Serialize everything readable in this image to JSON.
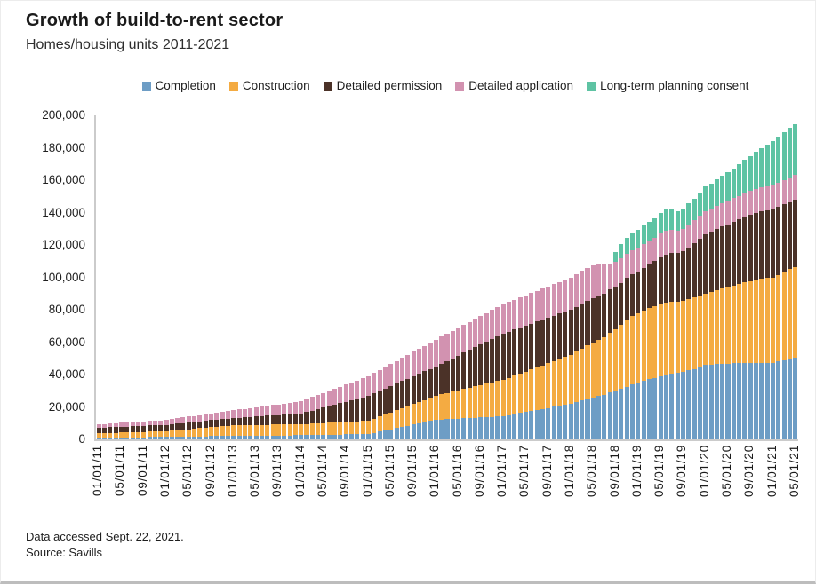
{
  "header": {
    "title": "Growth of build-to-rent sector",
    "subtitle": "Homes/housing units 2011-2021"
  },
  "footer": {
    "line1": "Data accessed Sept. 22, 2021.",
    "line2": "Source: Savills"
  },
  "chart_data": {
    "type": "bar",
    "stacked": true,
    "title": "Growth of build-to-rent sector",
    "subtitle": "Homes/housing units 2011-2021",
    "ylabel": "Homes/housing units",
    "ylim": [
      0,
      200000
    ],
    "grid": false,
    "legend_position": "top",
    "x_interval": "monthly",
    "x_first": "01/01/11",
    "x_last": "05/01/21",
    "n_points": 125,
    "x_tick_every": 4,
    "x_tick_labels": [
      "01/01/11",
      "05/01/11",
      "09/01/11",
      "01/01/12",
      "05/01/12",
      "09/01/12",
      "01/01/13",
      "05/01/13",
      "09/01/13",
      "01/01/14",
      "05/01/14",
      "09/01/14",
      "01/01/15",
      "05/01/15",
      "09/01/15",
      "01/01/16",
      "05/01/16",
      "09/01/16",
      "01/01/17",
      "05/01/17",
      "09/01/17",
      "01/01/18",
      "05/01/18",
      "09/01/18",
      "01/01/19",
      "05/01/19",
      "09/01/19",
      "01/01/20",
      "05/01/20",
      "09/01/20",
      "01/01/21",
      "05/01/21"
    ],
    "y_tick_labels": [
      "0",
      "20,000",
      "40,000",
      "60,000",
      "80,000",
      "100,000",
      "120,000",
      "140,000",
      "160,000",
      "180,000",
      "200,000"
    ],
    "series": [
      {
        "name": "Completion",
        "color": "#6d9dc5",
        "values": [
          1000,
          1040,
          1080,
          1130,
          1170,
          1210,
          1250,
          1290,
          1330,
          1380,
          1420,
          1460,
          1500,
          1560,
          1620,
          1680,
          1730,
          1790,
          1850,
          1910,
          1970,
          2030,
          2080,
          2140,
          2200,
          2230,
          2250,
          2280,
          2300,
          2330,
          2350,
          2380,
          2400,
          2430,
          2450,
          2480,
          2500,
          2570,
          2630,
          2700,
          2770,
          2830,
          2900,
          2970,
          3030,
          3100,
          3170,
          3230,
          3300,
          4030,
          4770,
          5500,
          6230,
          6970,
          7700,
          8430,
          9170,
          9900,
          10630,
          11370,
          12100,
          12280,
          12470,
          12650,
          12830,
          13020,
          13200,
          13380,
          13570,
          13750,
          13930,
          14120,
          14300,
          14940,
          15580,
          16230,
          16870,
          17510,
          18150,
          18790,
          19430,
          20080,
          20720,
          21360,
          22000,
          23000,
          24000,
          25000,
          26000,
          26800,
          27600,
          29000,
          30000,
          31000,
          32500,
          34000,
          35000,
          36000,
          37000,
          38000,
          39000,
          40000,
          40500,
          41000,
          41500,
          42500,
          43500,
          45000,
          46000,
          46200,
          46400,
          46600,
          46800,
          47000,
          47000,
          47000,
          47000,
          47100,
          47100,
          47200,
          47200,
          48000,
          49000,
          49800,
          50500
        ]
      },
      {
        "name": "Construction",
        "color": "#f4ab42",
        "values": [
          2800,
          2860,
          2920,
          2980,
          3030,
          3090,
          3150,
          3210,
          3270,
          3320,
          3380,
          3440,
          3500,
          3760,
          4020,
          4280,
          4530,
          4790,
          5050,
          5310,
          5570,
          5830,
          6080,
          6340,
          6600,
          6620,
          6630,
          6650,
          6670,
          6680,
          6700,
          6720,
          6730,
          6750,
          6770,
          6780,
          6800,
          6920,
          7030,
          7150,
          7270,
          7380,
          7500,
          7620,
          7730,
          7850,
          7970,
          8080,
          8200,
          8750,
          9300,
          9850,
          10400,
          10950,
          11500,
          12050,
          12600,
          13150,
          13700,
          14250,
          14800,
          15440,
          16080,
          16730,
          17370,
          18010,
          18650,
          19290,
          19930,
          20580,
          21220,
          21860,
          22500,
          23130,
          23750,
          24380,
          25000,
          25630,
          26250,
          26880,
          27500,
          28130,
          28750,
          29380,
          30000,
          31000,
          32000,
          33000,
          34000,
          34800,
          35600,
          37000,
          38000,
          39500,
          41000,
          42000,
          43000,
          43500,
          44000,
          44200,
          44500,
          44600,
          44600,
          44000,
          44000,
          44000,
          44000,
          44000,
          44000,
          44800,
          45600,
          46400,
          47200,
          48000,
          49000,
          50000,
          50800,
          51400,
          52000,
          52400,
          52700,
          53500,
          54300,
          55200,
          56000
        ]
      },
      {
        "name": "Detailed permission",
        "color": "#4b3228",
        "values": [
          3300,
          3360,
          3420,
          3470,
          3530,
          3590,
          3650,
          3710,
          3770,
          3820,
          3880,
          3940,
          4000,
          4030,
          4070,
          4100,
          4130,
          4170,
          4200,
          4230,
          4270,
          4300,
          4330,
          4370,
          4400,
          4580,
          4770,
          4950,
          5130,
          5320,
          5500,
          5680,
          5870,
          6050,
          6230,
          6420,
          6600,
          7330,
          8070,
          8800,
          9530,
          10270,
          11000,
          11730,
          12470,
          13200,
          13930,
          14670,
          15400,
          15630,
          15850,
          16080,
          16300,
          16530,
          16750,
          16980,
          17200,
          17430,
          17650,
          17880,
          18100,
          18970,
          19830,
          20700,
          21570,
          22430,
          23300,
          24170,
          25030,
          25900,
          26770,
          27630,
          28500,
          28460,
          28420,
          28380,
          28330,
          28290,
          28250,
          28210,
          28170,
          28130,
          28080,
          28040,
          28000,
          27800,
          27700,
          27500,
          27300,
          26900,
          26700,
          26400,
          26200,
          26100,
          26000,
          25900,
          25800,
          26500,
          27200,
          27800,
          29000,
          29600,
          30000,
          30000,
          30500,
          32000,
          33500,
          35000,
          36800,
          37300,
          37800,
          38300,
          38800,
          39300,
          39800,
          40300,
          40800,
          41300,
          41700,
          42000,
          42300,
          42000,
          41700,
          41500,
          41200
        ]
      },
      {
        "name": "Detailed application",
        "color": "#d292b0",
        "values": [
          2200,
          2270,
          2340,
          2400,
          2470,
          2530,
          2600,
          2670,
          2730,
          2800,
          2870,
          2930,
          3000,
          3150,
          3300,
          3450,
          3600,
          3750,
          3900,
          4050,
          4200,
          4350,
          4500,
          4650,
          4800,
          5030,
          5260,
          5500,
          5730,
          5960,
          6200,
          6430,
          6660,
          6900,
          7130,
          7360,
          7600,
          7980,
          8350,
          8730,
          9100,
          9480,
          9850,
          10230,
          10600,
          10980,
          11350,
          11730,
          12100,
          12470,
          12830,
          13200,
          13570,
          13930,
          14300,
          14670,
          15030,
          15400,
          15770,
          16130,
          16500,
          16640,
          16780,
          16930,
          17070,
          17210,
          17350,
          17490,
          17630,
          17780,
          17920,
          18060,
          18200,
          18350,
          18500,
          18650,
          18800,
          18950,
          19100,
          19250,
          19400,
          19550,
          19700,
          19850,
          20000,
          20300,
          20500,
          20500,
          20200,
          19500,
          18500,
          16000,
          15500,
          15200,
          15000,
          14900,
          14800,
          14700,
          14600,
          14600,
          14500,
          14500,
          14400,
          14000,
          14000,
          14000,
          14100,
          14200,
          14300,
          14300,
          14400,
          14400,
          14500,
          14500,
          14600,
          14600,
          14700,
          14700,
          14800,
          14800,
          14800,
          15000,
          15100,
          15300,
          15400
        ]
      },
      {
        "name": "Long-term planning consent",
        "color": "#5ec3a3",
        "values": [
          0,
          0,
          0,
          0,
          0,
          0,
          0,
          0,
          0,
          0,
          0,
          0,
          0,
          0,
          0,
          0,
          0,
          0,
          0,
          0,
          0,
          0,
          0,
          0,
          0,
          0,
          0,
          0,
          0,
          0,
          0,
          0,
          0,
          0,
          0,
          0,
          0,
          0,
          0,
          0,
          0,
          0,
          0,
          0,
          0,
          0,
          0,
          0,
          0,
          0,
          0,
          0,
          0,
          0,
          0,
          0,
          0,
          0,
          0,
          0,
          0,
          0,
          0,
          0,
          0,
          0,
          0,
          0,
          0,
          0,
          0,
          0,
          0,
          0,
          0,
          0,
          0,
          0,
          0,
          0,
          0,
          0,
          0,
          0,
          0,
          0,
          0,
          0,
          0,
          0,
          0,
          0,
          6000,
          9000,
          10000,
          10500,
          11000,
          11300,
          11500,
          11700,
          12800,
          13000,
          13000,
          12000,
          12000,
          13000,
          13500,
          14200,
          14900,
          15500,
          16200,
          17000,
          17800,
          18600,
          19600,
          20600,
          21700,
          22900,
          24300,
          25800,
          27400,
          28400,
          29400,
          30300,
          31300
        ]
      }
    ]
  }
}
